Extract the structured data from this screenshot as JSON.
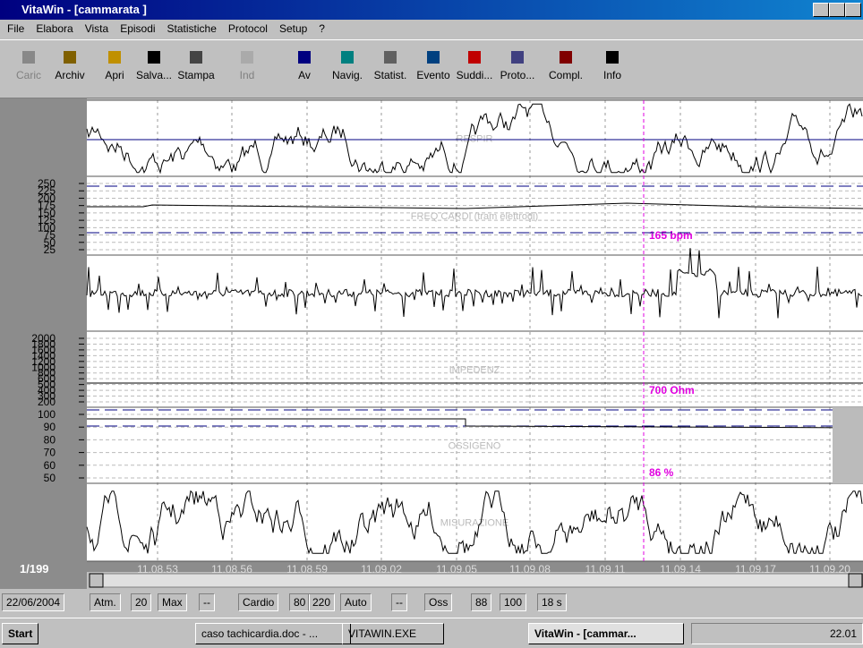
{
  "window": {
    "title": "VitaWin - [cammarata ]"
  },
  "menu": [
    "File",
    "Elabora",
    "Vista",
    "Episodi",
    "Statistiche",
    "Protocol",
    "Setup",
    "?"
  ],
  "toolbar": [
    "Caric",
    "Archiv",
    "Apri",
    "Salva...",
    "Stampa",
    "Ind",
    "Av",
    "Navig.",
    "Statist.",
    "Evento",
    "Suddi...",
    "Proto...",
    "Compl.",
    "Info"
  ],
  "panels": [
    {
      "label": "RESPIR"
    },
    {
      "label": "FREQ CARDI (tram elettrodi)",
      "scale": [
        "250",
        "225",
        "200",
        "175",
        "150",
        "125",
        "100",
        "75",
        "50",
        "25"
      ],
      "reading": "165 bpm"
    },
    {
      "label": ""
    },
    {
      "label": "IMPEDENZ",
      "scale": [
        "2000",
        "1800",
        "1600",
        "1400",
        "1200",
        "1000",
        "800",
        "600",
        "500",
        "400",
        "300",
        "200"
      ],
      "reading": "700 Ohm"
    },
    {
      "label": "OSSIGENO",
      "scale": [
        "100",
        "90",
        "80",
        "70",
        "60",
        "50"
      ],
      "reading": "86 %"
    },
    {
      "label": "MISURAZIONE"
    }
  ],
  "page_indicator": "1/199",
  "time_labels": [
    "11.08.53",
    "11.08.56",
    "11.08.59",
    "11.09.02",
    "11.09.05",
    "11.09.08",
    "11.09.11",
    "11.09.14",
    "11.09.17",
    "11.09.20"
  ],
  "status_bar": [
    "22/06/2004",
    "Atm.",
    "20",
    "Max",
    "--",
    "Cardio",
    "80",
    "220",
    "Auto",
    "--",
    "Oss",
    "88",
    "100",
    "18 s"
  ],
  "taskbar": {
    "start": "Start",
    "tasks": [
      "caso tachicardia.doc - ...",
      "VITAWIN.EXE",
      "VitaWin - [cammar..."
    ],
    "clock": "22.01"
  }
}
